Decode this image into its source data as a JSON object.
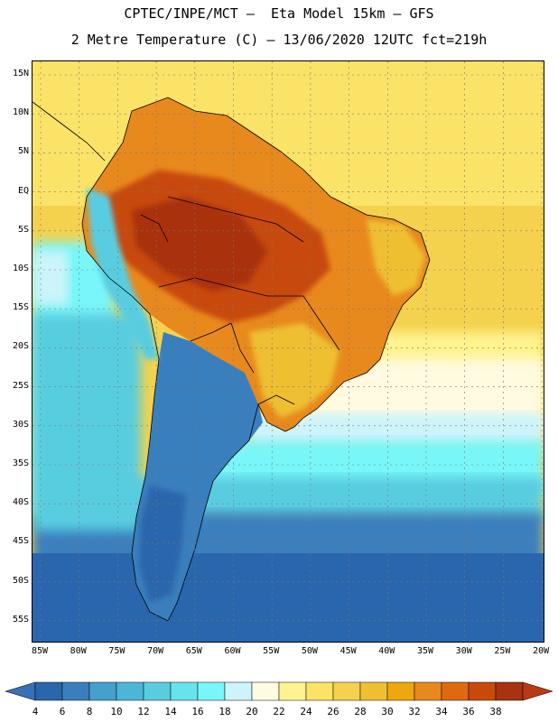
{
  "header": {
    "title_line1": "CPTEC/INPE/MCT –  Eta Model 15km – GFS",
    "title_line2": "2 Metre Temperature (C) – 13/06/2020 12UTC fct=219h"
  },
  "map": {
    "lat_labels": [
      "15N",
      "10N",
      "5N",
      "EQ",
      "5S",
      "10S",
      "15S",
      "20S",
      "25S",
      "30S",
      "35S",
      "40S",
      "45S",
      "50S",
      "55S"
    ],
    "lon_labels": [
      "85W",
      "80W",
      "75W",
      "70W",
      "65W",
      "60W",
      "55W",
      "50W",
      "45W",
      "40W",
      "35W",
      "30W",
      "25W",
      "20W"
    ]
  },
  "colorbar": {
    "labels": [
      "4",
      "6",
      "8",
      "10",
      "12",
      "14",
      "16",
      "18",
      "20",
      "22",
      "24",
      "26",
      "28",
      "30",
      "32",
      "34",
      "36",
      "38"
    ],
    "colors": [
      "#2a66ad",
      "#3a7fbd",
      "#45a0cc",
      "#4cb6d6",
      "#58cde0",
      "#68e2ec",
      "#78f6f8",
      "#ccf4fa",
      "#fffae0",
      "#fff390",
      "#fae366",
      "#f4d24e",
      "#efbf33",
      "#eea70c",
      "#e8891d",
      "#dd6a10",
      "#c84a0a",
      "#a93210"
    ],
    "low_color": "#3a6fb8",
    "high_color": "#b83a12"
  }
}
